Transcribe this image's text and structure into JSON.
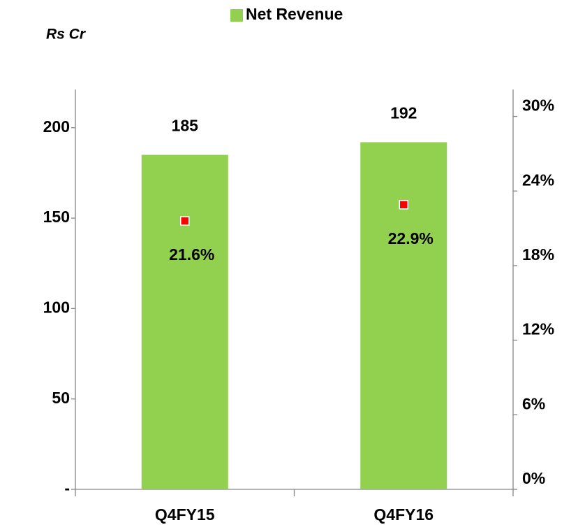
{
  "chart_data": {
    "type": "bar",
    "y_label": "Rs Cr",
    "categories": [
      "Q4FY15",
      "Q4FY16"
    ],
    "series": [
      {
        "name": "Net Revenue",
        "type": "bar",
        "color": "#92d050",
        "values": [
          185,
          192
        ]
      },
      {
        "type": "scatter",
        "axis": "y2",
        "color": "#ff0000",
        "values": [
          21.6,
          22.9
        ],
        "value_labels": [
          "21.6%",
          "22.9%"
        ]
      }
    ],
    "ylim": [
      0,
      220
    ],
    "yticks": [
      {
        "value": 0,
        "label": "-"
      },
      50,
      100,
      150,
      200
    ],
    "y2lim": [
      0,
      32
    ],
    "y2ticks": [
      {
        "value": 0,
        "label": "0%"
      },
      {
        "value": 6,
        "label": "6%"
      },
      {
        "value": 12,
        "label": "12%"
      },
      {
        "value": 18,
        "label": "18%"
      },
      {
        "value": 24,
        "label": "24%"
      },
      {
        "value": 30,
        "label": "30%"
      }
    ],
    "legend": "top"
  }
}
